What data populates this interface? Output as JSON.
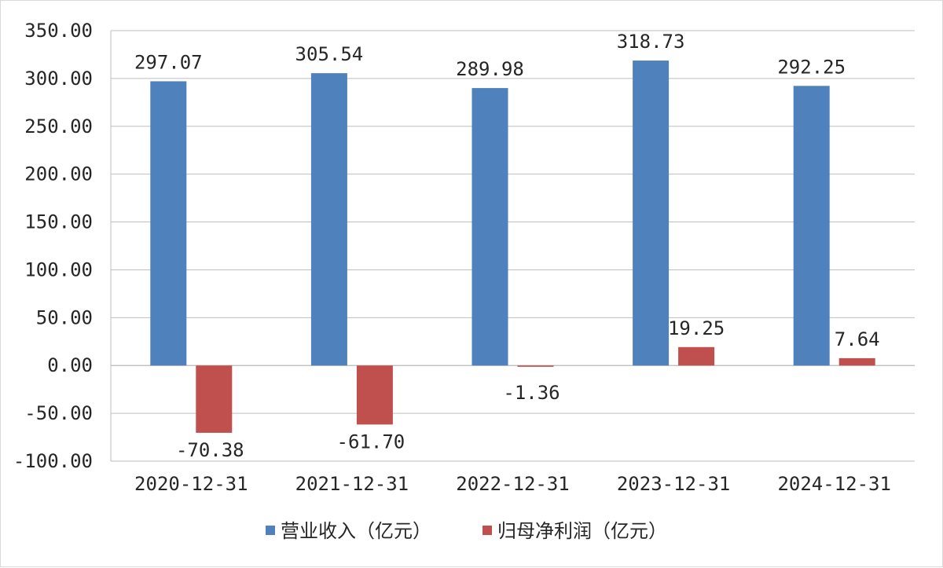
{
  "chart_data": {
    "type": "bar",
    "categories": [
      "2020-12-31",
      "2021-12-31",
      "2022-12-31",
      "2023-12-31",
      "2024-12-31"
    ],
    "series": [
      {
        "name": "营业收入（亿元）",
        "color": "#4f81bd",
        "values": [
          297.07,
          305.54,
          289.98,
          318.73,
          292.25
        ]
      },
      {
        "name": "归母净利润（亿元）",
        "color": "#c0504d",
        "values": [
          -70.38,
          -61.7,
          -1.36,
          19.25,
          7.64
        ]
      }
    ],
    "data_labels": [
      [
        "297.07",
        "305.54",
        "289.98",
        "318.73",
        "292.25"
      ],
      [
        "-70.38",
        "-61.70",
        "-1.36",
        "19.25",
        "7.64"
      ]
    ],
    "y_ticks": [
      "-100.00",
      "-50.00",
      "0.00",
      "50.00",
      "100.00",
      "150.00",
      "200.00",
      "250.00",
      "300.00",
      "350.00"
    ],
    "ylim": [
      -100,
      350
    ],
    "grid": "horizontal",
    "legend_position": "bottom"
  }
}
